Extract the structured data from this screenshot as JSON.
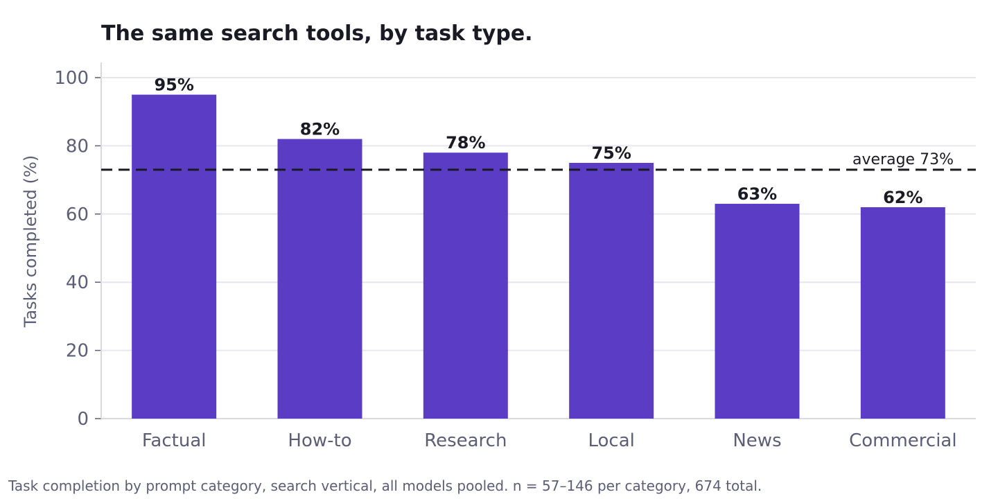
{
  "chart_data": {
    "type": "bar",
    "title": "The same search tools, by task type.",
    "ylabel": "Tasks completed (%)",
    "xlabel": "",
    "categories": [
      "Factual",
      "How-to",
      "Research",
      "Local",
      "News",
      "Commercial"
    ],
    "values": [
      95,
      82,
      78,
      75,
      63,
      62
    ],
    "data_labels": [
      "95%",
      "82%",
      "78%",
      "75%",
      "63%",
      "62%"
    ],
    "ylim": [
      0,
      100
    ],
    "yticks": [
      0,
      20,
      40,
      60,
      80,
      100
    ],
    "grid": true,
    "reference_line": {
      "value": 73,
      "label": "average 73%",
      "style": "dashed"
    },
    "caption": "Task completion by prompt category, search vertical, all models pooled. n = 57–146 per category, 674 total.",
    "colors": {
      "bar": "#5b3cc4",
      "grid": "#e6e6f0",
      "axis": "#d9d9e3",
      "text": "#1a1a24",
      "muted": "#5b5e75"
    }
  }
}
